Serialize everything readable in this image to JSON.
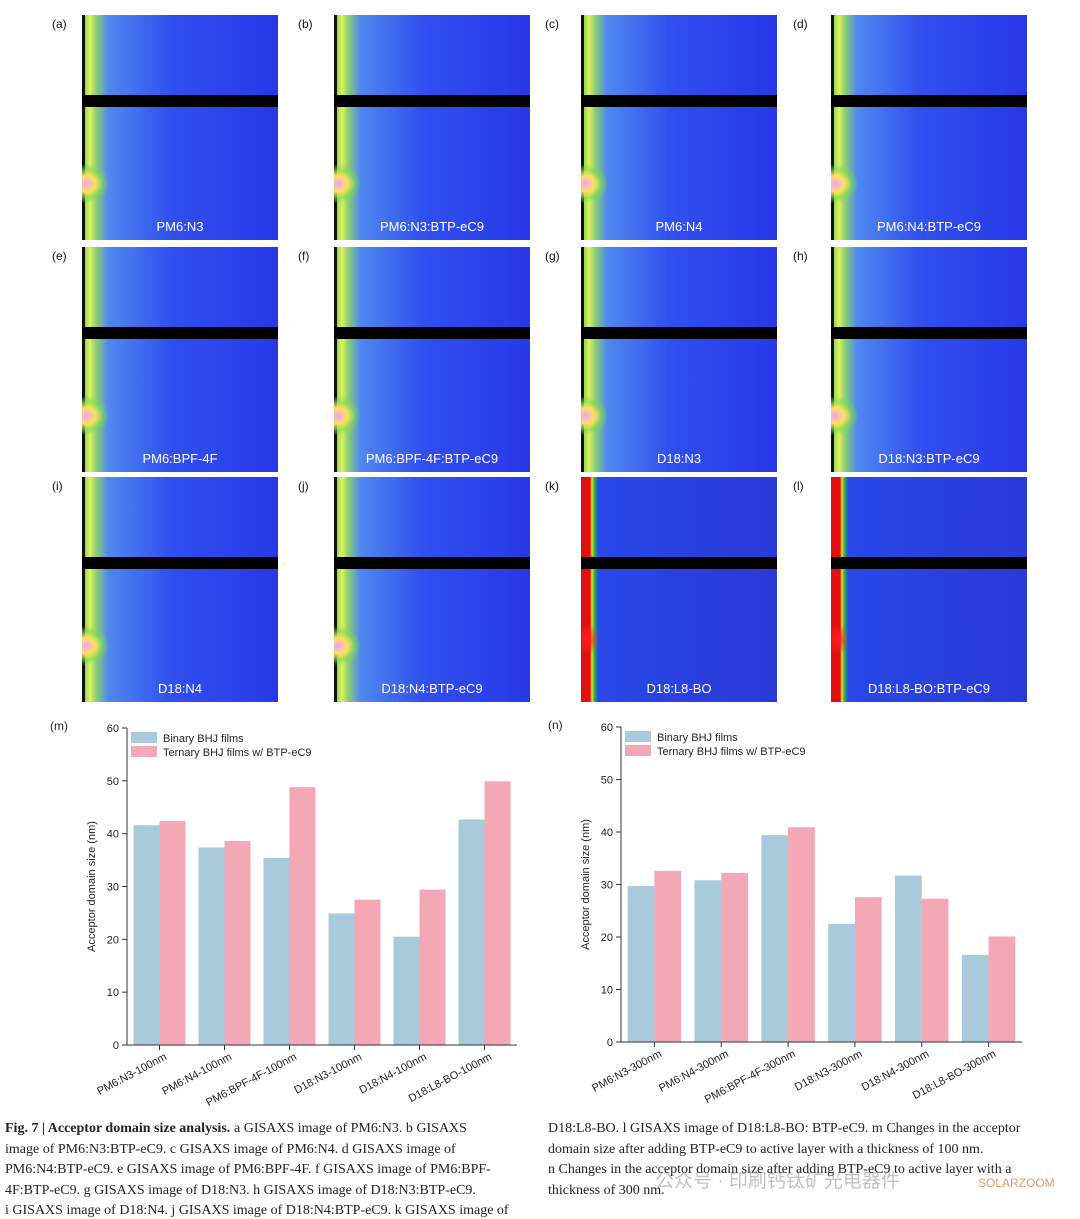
{
  "panels": [
    {
      "letter": "(a)",
      "label": "PM6:N3"
    },
    {
      "letter": "(b)",
      "label": "PM6:N3:BTP-eC9"
    },
    {
      "letter": "(c)",
      "label": "PM6:N4"
    },
    {
      "letter": "(d)",
      "label": "PM6:N4:BTP-eC9"
    },
    {
      "letter": "(e)",
      "label": "PM6:BPF-4F"
    },
    {
      "letter": "(f)",
      "label": "PM6:BPF-4F:BTP-eC9"
    },
    {
      "letter": "(g)",
      "label": "D18:N3"
    },
    {
      "letter": "(h)",
      "label": "D18:N3:BTP-eC9"
    },
    {
      "letter": "(i)",
      "label": "D18:N4"
    },
    {
      "letter": "(j)",
      "label": "D18:N4:BTP-eC9"
    },
    {
      "letter": "(k)",
      "label": "D18:L8-BO"
    },
    {
      "letter": "(l)",
      "label": "D18:L8-BO:BTP-eC9"
    }
  ],
  "chart_data": [
    {
      "type": "bar",
      "panel": "(m)",
      "y_label": "Acceptor domain size (nm)",
      "categories": [
        "PM6:N3-100nm",
        "PM6:N4-100nm",
        "PM6:BPF-4F-100nm",
        "D18:N3-100nm",
        "D18:N4-100nm",
        "D18:L8-BO-100nm"
      ],
      "series": [
        {
          "name": "Binary BHJ films",
          "color": "#a8cadb",
          "values": [
            41.6,
            37.4,
            35.4,
            24.9,
            20.5,
            42.7
          ]
        },
        {
          "name": "Ternary BHJ films w/ BTP-eC9",
          "color": "#f4a7b4",
          "values": [
            42.4,
            38.6,
            48.8,
            27.5,
            29.4,
            49.9
          ]
        }
      ],
      "ylim": [
        0,
        60
      ],
      "yticks": [
        0,
        10,
        20,
        30,
        40,
        50,
        60
      ],
      "legend": "upper-left"
    },
    {
      "type": "bar",
      "panel": "(n)",
      "y_label": "Acceptor domain size (nm)",
      "categories": [
        "PM6:N3-300nm",
        "PM6:N4-300nm",
        "PM6:BPF-4F-300nm",
        "D18:N3-300nm",
        "D18:N4-300nm",
        "D18:L8-BO-300nm"
      ],
      "series": [
        {
          "name": "Binary BHJ films",
          "color": "#a8cadb",
          "values": [
            29.7,
            30.8,
            39.4,
            22.5,
            31.7,
            16.6
          ]
        },
        {
          "name": "Ternary BHJ films w/ BTP-eC9",
          "color": "#f4a7b4",
          "values": [
            32.6,
            32.2,
            40.9,
            27.6,
            27.3,
            20.1
          ]
        }
      ],
      "ylim": [
        0,
        60
      ],
      "yticks": [
        0,
        10,
        20,
        30,
        40,
        50,
        60
      ],
      "legend": "upper-left"
    }
  ],
  "caption": {
    "heading": "Fig. 7 | Acceptor domain size analysis.",
    "left": [
      "a GISAXS image of PM6:N3. b GISAXS",
      "image of PM6:N3:BTP-eC9. c GISAXS image of PM6:N4. d GISAXS image of",
      "PM6:N4:BTP-eC9. e GISAXS image of PM6:BPF-4F. f GISAXS image of PM6:BPF-",
      "4F:BTP-eC9. g GISAXS image of D18:N3. h GISAXS image of D18:N3:BTP-eC9.",
      "i GISAXS image of D18:N4. j GISAXS image of D18:N4:BTP-eC9. k GISAXS image of"
    ],
    "right": [
      "D18:L8-BO. l GISAXS image of D18:L8-BO: BTP-eC9. m Changes in the acceptor",
      "domain size after adding BTP-eC9 to active layer with a thickness of 100 nm.",
      "n Changes in the acceptor domain size after adding BTP-eC9 to active layer with a",
      "thickness of 300 nm."
    ]
  },
  "watermark": {
    "text": "公众号 · 印刷钙钛矿光电器件",
    "brand": "SOLARZOOM"
  }
}
